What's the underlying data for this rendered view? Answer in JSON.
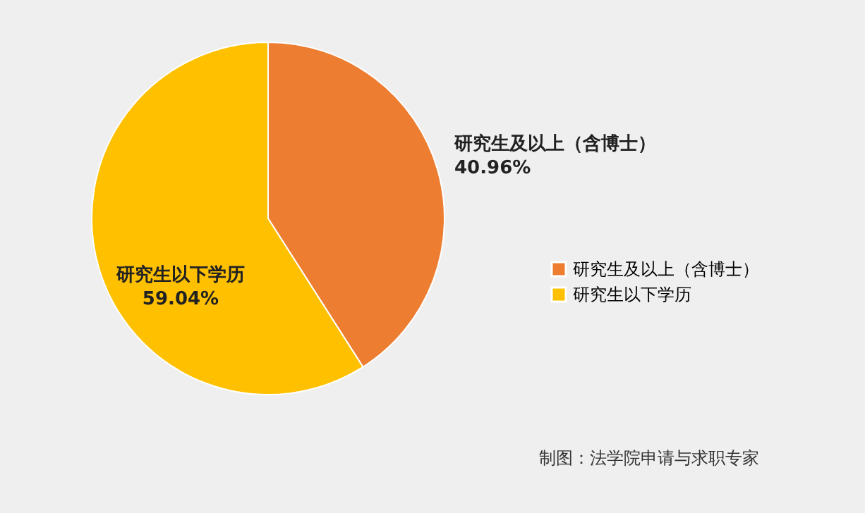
{
  "chart_data": {
    "type": "pie",
    "categories": [
      "研究生及以上（含博士）",
      "研究生以下学历"
    ],
    "values": [
      40.96,
      59.04
    ],
    "value_labels": [
      "40.96%",
      "59.04%"
    ],
    "colors": [
      "#ed7d31",
      "#ffc000"
    ],
    "legend": "right",
    "annotations": [
      "制图：法学院申请与求职专家"
    ]
  }
}
